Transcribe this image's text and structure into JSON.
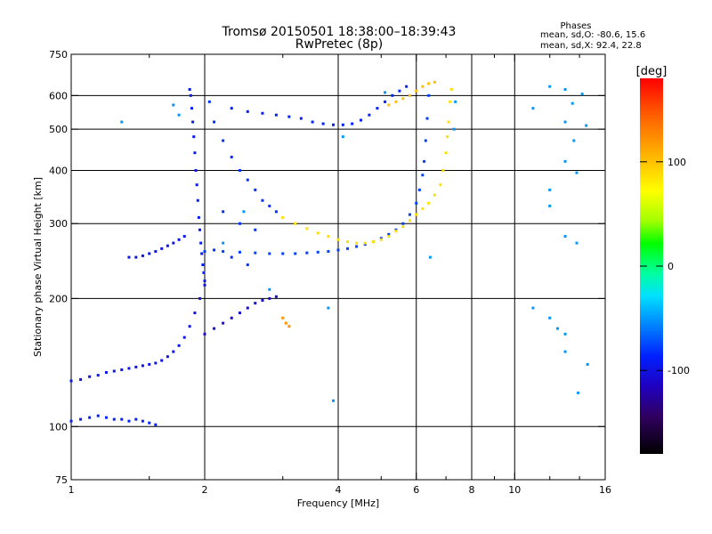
{
  "chart_data": {
    "type": "scatter",
    "title": "Tromsø 20150501 18:38:00–18:39:43",
    "subtitle": "RwPretec (8p)",
    "xlabel": "Frequency [MHz]",
    "ylabel": "Stationary phase Virtual Height [km]",
    "x_scale": "log",
    "y_scale": "log",
    "xlim": [
      1,
      16
    ],
    "ylim": [
      75,
      750
    ],
    "x_ticks": [
      1,
      2,
      4,
      6,
      8,
      10,
      16
    ],
    "x_tick_labels": [
      "1",
      "2",
      "4",
      "6",
      "8",
      "10",
      "16"
    ],
    "x_minor_ticks": [
      1.5,
      3,
      5,
      7,
      9,
      12,
      14
    ],
    "y_ticks": [
      75,
      100,
      200,
      300,
      400,
      500,
      600,
      750
    ],
    "y_tick_labels": [
      "75",
      "100",
      "200",
      "300",
      "400",
      "500",
      "600",
      "750"
    ],
    "x_grid": [
      2,
      4,
      6,
      8,
      10
    ],
    "y_grid": [
      100,
      200,
      300,
      400,
      500,
      600
    ],
    "grid": true,
    "legend_title": "Phases",
    "legend_lines": [
      "mean, sd,O: -80.6, 15.6",
      "mean, sd,X:  92.4, 22.8"
    ],
    "legend_position": "top-right",
    "colorbar": {
      "label": "[deg]",
      "range": [
        -180,
        180
      ],
      "ticks": [
        100,
        0,
        -100
      ],
      "tick_labels": [
        "100",
        "0",
        "-100"
      ],
      "colormap": "rainbow"
    },
    "traces": [
      {
        "name": "O-mode E/F1 low-frequency trace",
        "phase": -100,
        "points": [
          [
            1.0,
            103
          ],
          [
            1.05,
            104
          ],
          [
            1.1,
            105
          ],
          [
            1.15,
            106
          ],
          [
            1.2,
            105
          ],
          [
            1.25,
            104
          ],
          [
            1.3,
            104
          ],
          [
            1.35,
            103
          ],
          [
            1.4,
            104
          ],
          [
            1.45,
            103
          ],
          [
            1.5,
            102
          ],
          [
            1.55,
            101
          ]
        ]
      },
      {
        "name": "O-mode F-region lower branch",
        "phase": -110,
        "points": [
          [
            1.0,
            128
          ],
          [
            1.05,
            129
          ],
          [
            1.1,
            131
          ],
          [
            1.15,
            132
          ],
          [
            1.2,
            134
          ],
          [
            1.25,
            135
          ],
          [
            1.3,
            136
          ],
          [
            1.35,
            137
          ],
          [
            1.4,
            138
          ],
          [
            1.45,
            139
          ],
          [
            1.5,
            140
          ],
          [
            1.55,
            141
          ],
          [
            1.6,
            143
          ],
          [
            1.65,
            146
          ],
          [
            1.7,
            150
          ],
          [
            1.75,
            155
          ],
          [
            1.8,
            162
          ],
          [
            1.85,
            172
          ],
          [
            1.9,
            185
          ],
          [
            1.95,
            200
          ],
          [
            2.0,
            215
          ]
        ]
      },
      {
        "name": "O-mode F2 cusp (near-vertical)",
        "phase": -105,
        "points": [
          [
            1.85,
            620
          ],
          [
            1.86,
            600
          ],
          [
            1.87,
            560
          ],
          [
            1.88,
            520
          ],
          [
            1.89,
            480
          ],
          [
            1.9,
            440
          ],
          [
            1.91,
            400
          ],
          [
            1.92,
            370
          ],
          [
            1.93,
            340
          ],
          [
            1.94,
            310
          ],
          [
            1.95,
            290
          ],
          [
            1.96,
            270
          ],
          [
            1.97,
            255
          ],
          [
            1.98,
            240
          ],
          [
            1.99,
            230
          ],
          [
            2.0,
            220
          ]
        ]
      },
      {
        "name": "O-mode F2 spread echoes",
        "phase": -95,
        "points": [
          [
            2.05,
            580
          ],
          [
            2.1,
            520
          ],
          [
            2.2,
            470
          ],
          [
            2.3,
            430
          ],
          [
            2.4,
            400
          ],
          [
            2.5,
            380
          ],
          [
            2.6,
            360
          ],
          [
            2.7,
            340
          ],
          [
            2.8,
            330
          ],
          [
            2.9,
            320
          ],
          [
            2.2,
            320
          ],
          [
            2.4,
            300
          ],
          [
            2.6,
            290
          ],
          [
            2.1,
            260
          ],
          [
            2.3,
            250
          ],
          [
            2.5,
            240
          ]
        ]
      },
      {
        "name": "O-mode spur at 250-280 km",
        "phase": -110,
        "points": [
          [
            1.35,
            250
          ],
          [
            1.4,
            250
          ],
          [
            1.45,
            252
          ],
          [
            1.5,
            255
          ],
          [
            1.55,
            258
          ],
          [
            1.6,
            262
          ],
          [
            1.65,
            266
          ],
          [
            1.7,
            270
          ],
          [
            1.75,
            275
          ],
          [
            1.8,
            280
          ]
        ]
      },
      {
        "name": "O-mode low branch 180-200 km",
        "phase": -120,
        "points": [
          [
            2.0,
            165
          ],
          [
            2.1,
            170
          ],
          [
            2.2,
            175
          ],
          [
            2.3,
            180
          ],
          [
            2.4,
            185
          ],
          [
            2.5,
            190
          ],
          [
            2.6,
            195
          ],
          [
            2.7,
            198
          ],
          [
            2.8,
            200
          ],
          [
            2.9,
            202
          ]
        ]
      },
      {
        "name": "O-mode F2 main trace",
        "phase": -90,
        "points": [
          [
            2.0,
            258
          ],
          [
            2.2,
            258
          ],
          [
            2.4,
            257
          ],
          [
            2.6,
            256
          ],
          [
            2.8,
            255
          ],
          [
            3.0,
            255
          ],
          [
            3.2,
            255
          ],
          [
            3.4,
            256
          ],
          [
            3.6,
            257
          ],
          [
            3.8,
            258
          ],
          [
            4.0,
            260
          ],
          [
            4.2,
            262
          ],
          [
            4.4,
            265
          ],
          [
            4.6,
            268
          ],
          [
            4.8,
            272
          ],
          [
            5.0,
            277
          ],
          [
            5.2,
            283
          ],
          [
            5.4,
            290
          ],
          [
            5.6,
            300
          ],
          [
            5.8,
            315
          ],
          [
            6.0,
            335
          ],
          [
            6.1,
            360
          ],
          [
            6.2,
            390
          ],
          [
            6.25,
            420
          ],
          [
            6.3,
            470
          ],
          [
            6.35,
            530
          ],
          [
            6.4,
            600
          ]
        ]
      },
      {
        "name": "O-mode upper trace ~500-600 km",
        "phase": -100,
        "points": [
          [
            2.3,
            560
          ],
          [
            2.5,
            550
          ],
          [
            2.7,
            545
          ],
          [
            2.9,
            540
          ],
          [
            3.1,
            535
          ],
          [
            3.3,
            530
          ],
          [
            3.5,
            520
          ],
          [
            3.7,
            515
          ],
          [
            3.9,
            512
          ],
          [
            4.1,
            512
          ],
          [
            4.3,
            515
          ],
          [
            4.5,
            525
          ],
          [
            4.7,
            540
          ],
          [
            4.9,
            560
          ],
          [
            5.1,
            580
          ],
          [
            5.3,
            600
          ],
          [
            5.5,
            615
          ],
          [
            5.7,
            630
          ]
        ]
      },
      {
        "name": "X-mode F2 trace",
        "phase": 90,
        "points": [
          [
            3.0,
            310
          ],
          [
            3.2,
            300
          ],
          [
            3.4,
            292
          ],
          [
            3.6,
            285
          ],
          [
            3.8,
            280
          ],
          [
            4.0,
            275
          ],
          [
            4.2,
            272
          ],
          [
            4.4,
            270
          ],
          [
            4.6,
            270
          ],
          [
            4.8,
            272
          ],
          [
            5.0,
            275
          ],
          [
            5.2,
            280
          ],
          [
            5.4,
            288
          ],
          [
            5.6,
            295
          ],
          [
            5.8,
            305
          ],
          [
            6.0,
            315
          ],
          [
            6.2,
            325
          ],
          [
            6.4,
            335
          ],
          [
            6.6,
            350
          ],
          [
            6.8,
            370
          ],
          [
            6.9,
            400
          ],
          [
            7.0,
            440
          ],
          [
            7.05,
            480
          ],
          [
            7.1,
            520
          ],
          [
            7.15,
            580
          ],
          [
            7.2,
            620
          ]
        ]
      },
      {
        "name": "X-mode upper segment",
        "phase": 100,
        "points": [
          [
            5.2,
            570
          ],
          [
            5.4,
            580
          ],
          [
            5.6,
            590
          ],
          [
            5.8,
            600
          ],
          [
            6.0,
            615
          ],
          [
            6.2,
            630
          ],
          [
            6.4,
            640
          ],
          [
            6.6,
            645
          ]
        ]
      },
      {
        "name": "X-mode short segment",
        "phase": 110,
        "points": [
          [
            3.0,
            180
          ],
          [
            3.05,
            175
          ],
          [
            3.1,
            172
          ]
        ]
      },
      {
        "name": "Scattered noise",
        "phase": -60,
        "points": [
          [
            1.3,
            520
          ],
          [
            1.7,
            570
          ],
          [
            1.75,
            540
          ],
          [
            2.2,
            270
          ],
          [
            2.45,
            320
          ],
          [
            2.8,
            210
          ],
          [
            3.8,
            190
          ],
          [
            3.9,
            115
          ],
          [
            4.1,
            480
          ],
          [
            5.1,
            610
          ],
          [
            6.45,
            250
          ],
          [
            7.3,
            500
          ],
          [
            7.35,
            580
          ],
          [
            11.0,
            560
          ],
          [
            11.0,
            190
          ],
          [
            12.0,
            630
          ],
          [
            12.0,
            360
          ],
          [
            12.0,
            330
          ],
          [
            12.0,
            180
          ],
          [
            12.5,
            170
          ],
          [
            13.0,
            620
          ],
          [
            13.0,
            520
          ],
          [
            13.0,
            420
          ],
          [
            13.0,
            280
          ],
          [
            13.0,
            165
          ],
          [
            13.0,
            150
          ],
          [
            13.5,
            575
          ],
          [
            13.6,
            470
          ],
          [
            13.8,
            395
          ],
          [
            13.8,
            270
          ],
          [
            13.9,
            120
          ],
          [
            14.2,
            605
          ],
          [
            14.5,
            510
          ],
          [
            14.6,
            140
          ]
        ]
      }
    ]
  }
}
